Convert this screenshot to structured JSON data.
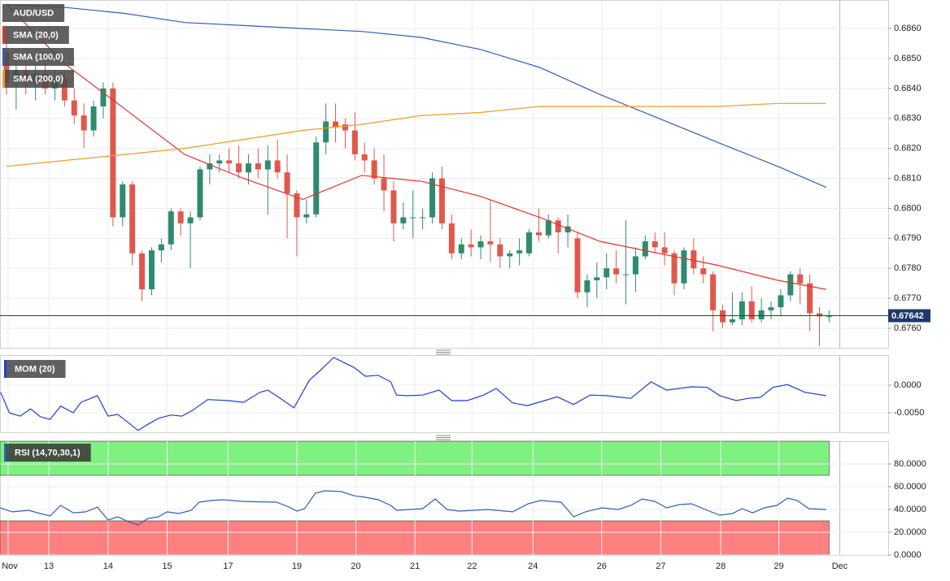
{
  "chart_data": [
    {
      "type": "candlestick",
      "title": "AUD/USD",
      "up_color": "#2e8b6f",
      "down_color": "#e0584b",
      "ohlc": [
        [
          0.6852,
          0.6856,
          0.6838,
          0.6842
        ],
        [
          0.6842,
          0.685,
          0.6833,
          0.6846
        ],
        [
          0.6846,
          0.6849,
          0.6838,
          0.6842
        ],
        [
          0.6842,
          0.6848,
          0.6836,
          0.6845
        ],
        [
          0.6845,
          0.6852,
          0.6838,
          0.684
        ],
        [
          0.684,
          0.6846,
          0.6836,
          0.6843
        ],
        [
          0.6843,
          0.6846,
          0.6834,
          0.6836
        ],
        [
          0.6836,
          0.684,
          0.6828,
          0.6831
        ],
        [
          0.6831,
          0.6835,
          0.682,
          0.6826
        ],
        [
          0.6826,
          0.6836,
          0.6824,
          0.6834
        ],
        [
          0.6834,
          0.6842,
          0.683,
          0.684
        ],
        [
          0.684,
          0.6842,
          0.6794,
          0.6797
        ],
        [
          0.6797,
          0.6809,
          0.6794,
          0.6808
        ],
        [
          0.6808,
          0.6809,
          0.6781,
          0.6785
        ],
        [
          0.6785,
          0.6786,
          0.6769,
          0.6773
        ],
        [
          0.6773,
          0.6787,
          0.6771,
          0.6786
        ],
        [
          0.6786,
          0.679,
          0.6782,
          0.6788
        ],
        [
          0.6788,
          0.68,
          0.6786,
          0.6799
        ],
        [
          0.6799,
          0.68,
          0.6791,
          0.6795
        ],
        [
          0.6795,
          0.6799,
          0.678,
          0.6797
        ],
        [
          0.6797,
          0.6814,
          0.6796,
          0.6813
        ],
        [
          0.6813,
          0.6818,
          0.6808,
          0.6815
        ],
        [
          0.6815,
          0.6818,
          0.6812,
          0.6816
        ],
        [
          0.6816,
          0.682,
          0.6812,
          0.6815
        ],
        [
          0.6815,
          0.6821,
          0.681,
          0.6812
        ],
        [
          0.6812,
          0.6818,
          0.6808,
          0.6815
        ],
        [
          0.6815,
          0.682,
          0.681,
          0.6813
        ],
        [
          0.6813,
          0.6821,
          0.6798,
          0.6816
        ],
        [
          0.6816,
          0.6823,
          0.681,
          0.6812
        ],
        [
          0.6812,
          0.6818,
          0.679,
          0.6805
        ],
        [
          0.6805,
          0.6806,
          0.6784,
          0.6797
        ],
        [
          0.6797,
          0.6803,
          0.6795,
          0.6798
        ],
        [
          0.6798,
          0.6824,
          0.6797,
          0.6822
        ],
        [
          0.6822,
          0.6835,
          0.6818,
          0.6829
        ],
        [
          0.6829,
          0.6835,
          0.6822,
          0.6827
        ],
        [
          0.6828,
          0.683,
          0.682,
          0.6826
        ],
        [
          0.6826,
          0.6832,
          0.6816,
          0.6818
        ],
        [
          0.6818,
          0.6822,
          0.6812,
          0.6816
        ],
        [
          0.6816,
          0.682,
          0.6808,
          0.681
        ],
        [
          0.681,
          0.6818,
          0.6799,
          0.6806
        ],
        [
          0.6806,
          0.6809,
          0.6789,
          0.6795
        ],
        [
          0.6795,
          0.6802,
          0.6793,
          0.6797
        ],
        [
          0.6797,
          0.6806,
          0.679,
          0.6797
        ],
        [
          0.6797,
          0.68,
          0.6793,
          0.6797
        ],
        [
          0.6797,
          0.6812,
          0.6795,
          0.681
        ],
        [
          0.681,
          0.6814,
          0.6793,
          0.6795
        ],
        [
          0.6795,
          0.6798,
          0.6783,
          0.6785
        ],
        [
          0.6785,
          0.679,
          0.6783,
          0.6788
        ],
        [
          0.6788,
          0.6793,
          0.6784,
          0.6787
        ],
        [
          0.6787,
          0.6791,
          0.6783,
          0.6789
        ],
        [
          0.6789,
          0.6803,
          0.6782,
          0.6788
        ],
        [
          0.6788,
          0.679,
          0.678,
          0.6784
        ],
        [
          0.6784,
          0.6786,
          0.678,
          0.6785
        ],
        [
          0.6785,
          0.679,
          0.6781,
          0.6786
        ],
        [
          0.6785,
          0.6793,
          0.6784,
          0.6792
        ],
        [
          0.6792,
          0.68,
          0.6789,
          0.6791
        ],
        [
          0.6791,
          0.6798,
          0.679,
          0.6796
        ],
        [
          0.6796,
          0.6797,
          0.6785,
          0.6792
        ],
        [
          0.6792,
          0.6798,
          0.6787,
          0.6794
        ],
        [
          0.679,
          0.6792,
          0.677,
          0.6772
        ],
        [
          0.6772,
          0.6778,
          0.6767,
          0.6776
        ],
        [
          0.6776,
          0.6782,
          0.677,
          0.6777
        ],
        [
          0.6777,
          0.6785,
          0.6773,
          0.678
        ],
        [
          0.678,
          0.6786,
          0.6775,
          0.6778
        ],
        [
          0.6778,
          0.6796,
          0.6768,
          0.6778
        ],
        [
          0.6778,
          0.6787,
          0.6772,
          0.6784
        ],
        [
          0.6784,
          0.6791,
          0.6783,
          0.6789
        ],
        [
          0.6789,
          0.6792,
          0.6785,
          0.6787
        ],
        [
          0.6787,
          0.6792,
          0.6781,
          0.6785
        ],
        [
          0.6785,
          0.6786,
          0.6771,
          0.6775
        ],
        [
          0.6775,
          0.6787,
          0.6773,
          0.6786
        ],
        [
          0.6786,
          0.679,
          0.6778,
          0.678
        ],
        [
          0.678,
          0.6784,
          0.6775,
          0.6778
        ],
        [
          0.6778,
          0.6779,
          0.6759,
          0.6766
        ],
        [
          0.6766,
          0.6768,
          0.676,
          0.6762
        ],
        [
          0.6762,
          0.6772,
          0.6761,
          0.6763
        ],
        [
          0.6763,
          0.6772,
          0.6761,
          0.6769
        ],
        [
          0.6769,
          0.6774,
          0.6762,
          0.6763
        ],
        [
          0.6763,
          0.677,
          0.6762,
          0.6766
        ],
        [
          0.6766,
          0.6769,
          0.6763,
          0.6767
        ],
        [
          0.6767,
          0.6773,
          0.6764,
          0.6771
        ],
        [
          0.6771,
          0.6779,
          0.6769,
          0.6778
        ],
        [
          0.6778,
          0.678,
          0.6768,
          0.6775
        ],
        [
          0.6775,
          0.6778,
          0.6759,
          0.6765
        ],
        [
          0.6765,
          0.6767,
          0.6754,
          0.6764
        ],
        [
          0.6764,
          0.6766,
          0.6762,
          0.6764
        ]
      ],
      "series": [
        {
          "name": "SMA (20,0)",
          "color": "#e8302a",
          "x": [
            0,
            6.1,
            12.3,
            18.4,
            24.5,
            30.6,
            36.7,
            42.9,
            49.0,
            55.1,
            61.3,
            67.4,
            73.5,
            79.7,
            84.7
          ],
          "values": [
            0.6868,
            0.6848,
            0.6833,
            0.6818,
            0.681,
            0.6803,
            0.6811,
            0.6809,
            0.6804,
            0.6797,
            0.6789,
            0.6785,
            0.6781,
            0.6776,
            0.6773
          ]
        },
        {
          "name": "SMA (100,0)",
          "color": "#2f5fb5",
          "x": [
            0,
            6.1,
            12.3,
            18.4,
            24.5,
            30.6,
            36.7,
            42.9,
            49.0,
            55.1,
            61.3,
            67.4,
            73.5,
            79.7,
            84.7
          ],
          "values": [
            0.6868,
            0.6867,
            0.6865,
            0.6862,
            0.6861,
            0.686,
            0.6859,
            0.6857,
            0.6853,
            0.6847,
            0.6838,
            0.683,
            0.6822,
            0.6814,
            0.6807
          ]
        },
        {
          "name": "SMA (200,0)",
          "color": "#f39c1f",
          "x": [
            0,
            6.1,
            12.3,
            18.4,
            24.5,
            30.6,
            36.7,
            42.9,
            49.0,
            55.1,
            61.3,
            67.4,
            73.5,
            79.7,
            84.7
          ],
          "values": [
            0.6814,
            0.6816,
            0.6818,
            0.682,
            0.6823,
            0.6826,
            0.6828,
            0.6831,
            0.6832,
            0.6834,
            0.6834,
            0.6834,
            0.6834,
            0.6835,
            0.6835
          ]
        }
      ],
      "last_price": 0.67642,
      "last_price_color": "#1c3a6b",
      "ylim": [
        0.67535,
        0.68695
      ],
      "yticks": [
        {
          "value": 0.676,
          "label": "0.6760"
        },
        {
          "value": 0.677,
          "label": "0.6770"
        },
        {
          "value": 0.678,
          "label": "0.6780"
        },
        {
          "value": 0.679,
          "label": "0.6790"
        },
        {
          "value": 0.68,
          "label": "0.6800"
        },
        {
          "value": 0.681,
          "label": "0.6810"
        },
        {
          "value": 0.682,
          "label": "0.6820"
        },
        {
          "value": 0.683,
          "label": "0.6830"
        },
        {
          "value": 0.684,
          "label": "0.6840"
        },
        {
          "value": 0.685,
          "label": "0.6850"
        },
        {
          "value": 0.686,
          "label": "0.6860"
        }
      ],
      "xlim": [
        -0.67,
        91.1
      ],
      "xticks": [
        {
          "value": 0.17,
          "label": "Nov"
        },
        {
          "value": 4.37,
          "label": "13"
        },
        {
          "value": 10.5,
          "label": "14"
        },
        {
          "value": 16.6,
          "label": "15"
        },
        {
          "value": 22.9,
          "label": "17"
        },
        {
          "value": 30.0,
          "label": "19"
        },
        {
          "value": 36.1,
          "label": "20"
        },
        {
          "value": 42.2,
          "label": "21"
        },
        {
          "value": 48.1,
          "label": "22"
        },
        {
          "value": 54.4,
          "label": "24"
        },
        {
          "value": 61.5,
          "label": "26"
        },
        {
          "value": 67.6,
          "label": "27"
        },
        {
          "value": 73.8,
          "label": "28"
        },
        {
          "value": 79.8,
          "label": "29"
        },
        {
          "value": 86.1,
          "label": "Dec"
        }
      ]
    },
    {
      "type": "line",
      "title": "MOM (20)",
      "series": [
        {
          "color": "#1f3fcf",
          "x": [
            -0.6,
            0.3,
            1.4,
            2.5,
            3.5,
            4.5,
            5.6,
            6.9,
            7.7,
            9.4,
            10.5,
            11.5,
            12.6,
            13.6,
            14.6,
            15.7,
            17.0,
            18.1,
            19.1,
            20.8,
            22.9,
            24.5,
            26.2,
            27.0,
            28.3,
            29.7,
            31.3,
            32.5,
            33.8,
            35.9,
            37.1,
            38.4,
            39.7,
            40.3,
            41.3,
            43.0,
            44.7,
            46.0,
            47.6,
            49.3,
            50.6,
            52.3,
            53.8,
            55.6,
            56.9,
            58.6,
            60.3,
            62.0,
            64.5,
            66.6,
            68.2,
            70.8,
            72.4,
            73.7,
            75.4,
            76.6,
            77.9,
            79.2,
            80.7,
            82.5,
            84.7
          ],
          "values": [
            -0.0013,
            -0.005,
            -0.0056,
            -0.0043,
            -0.0057,
            -0.0062,
            -0.0038,
            -0.005,
            -0.0031,
            -0.0019,
            -0.0056,
            -0.0053,
            -0.0068,
            -0.0082,
            -0.0071,
            -0.006,
            -0.0054,
            -0.0056,
            -0.0047,
            -0.0026,
            -0.0028,
            -0.0031,
            -0.0013,
            -0.0009,
            -0.0024,
            -0.0041,
            0.0009,
            0.0028,
            0.005,
            0.0032,
            0.0016,
            0.0018,
            0.0006,
            -0.0018,
            -0.0019,
            -0.0018,
            -0.0009,
            -0.0028,
            -0.0028,
            -0.0018,
            -0.0006,
            -0.0032,
            -0.0037,
            -0.0028,
            -0.0021,
            -0.0035,
            -0.0018,
            -0.0019,
            -0.0024,
            0.0006,
            -0.0009,
            -0.0003,
            -0.0004,
            -0.0019,
            -0.0028,
            -0.0024,
            -0.0022,
            -0.0004,
            0.0001,
            -0.0013,
            -0.0019
          ]
        }
      ],
      "ylim": [
        -0.00853,
        0.00544
      ],
      "yticks": [
        {
          "value": 0,
          "label": "0.0000"
        },
        {
          "value": -0.005,
          "label": "-0.0050"
        }
      ]
    },
    {
      "type": "line",
      "title": "RSI (14,70,30,1)",
      "overbought": 70,
      "oversold": 30,
      "overbought_color": "#80f080",
      "oversold_color": "#ff8080",
      "series": [
        {
          "color": "#2f5fb5",
          "x": [
            -0.67,
            0.6,
            2.3,
            3.5,
            4.5,
            5.6,
            6.9,
            8.2,
            9.4,
            10.5,
            11.5,
            12.6,
            13.6,
            14.6,
            15.7,
            16.6,
            17.8,
            19.1,
            19.9,
            21.2,
            22.4,
            24.5,
            27.9,
            29.2,
            30.0,
            30.8,
            31.9,
            32.9,
            34.6,
            35.9,
            37.1,
            38.4,
            39.7,
            40.3,
            43.0,
            44.3,
            45.5,
            46.8,
            49.7,
            52.3,
            53.9,
            55.2,
            57.3,
            58.6,
            59.8,
            61.5,
            63.2,
            64.5,
            65.7,
            67.0,
            68.2,
            69.5,
            70.8,
            72.4,
            73.7,
            75.0,
            76.0,
            77.1,
            78.3,
            79.6,
            80.7,
            81.7,
            82.9,
            84.7
          ],
          "values": [
            41.4,
            37.9,
            39.3,
            36.4,
            34.3,
            43.6,
            37.1,
            37.9,
            42.1,
            30.7,
            33.6,
            29.3,
            26.4,
            32.1,
            33.6,
            37.9,
            36.4,
            39.3,
            46.4,
            47.9,
            48.6,
            47.1,
            46.4,
            42.1,
            38.6,
            40.7,
            54.3,
            56.4,
            55.7,
            52.1,
            50.7,
            48.6,
            43.6,
            39.3,
            40.7,
            49.3,
            40.0,
            38.6,
            40.0,
            37.9,
            45.0,
            47.9,
            46.4,
            33.6,
            37.9,
            41.4,
            40.0,
            43.6,
            49.3,
            47.1,
            41.4,
            44.3,
            45.0,
            39.3,
            35.0,
            36.4,
            40.7,
            37.1,
            41.4,
            43.6,
            50.0,
            47.9,
            40.7,
            40.0
          ]
        }
      ],
      "ylim": [
        0,
        100
      ],
      "yticks": [
        {
          "value": 80,
          "label": "80.0000"
        },
        {
          "value": 60,
          "label": "60.0000"
        },
        {
          "value": 40,
          "label": "40.0000"
        },
        {
          "value": 20,
          "label": "20.0000"
        },
        {
          "value": 0,
          "label": "0.0000"
        }
      ]
    }
  ]
}
